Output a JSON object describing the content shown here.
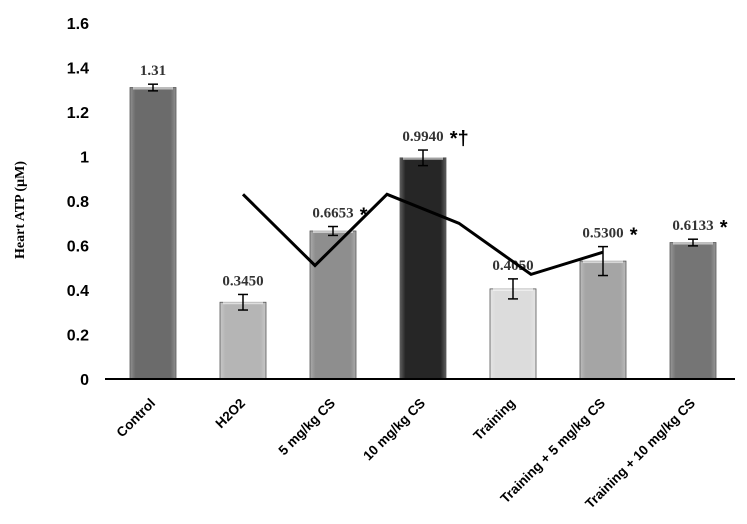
{
  "chart_data": {
    "type": "bar",
    "title": "",
    "xlabel": "",
    "ylabel": "Heart ATP (µM)",
    "ylim": [
      0,
      1.6
    ],
    "yticks": [
      "0",
      "0.2",
      "0.4",
      "0.6",
      "0.8",
      "1",
      "1.2",
      "1.4",
      "1.6"
    ],
    "grid": false,
    "categories": [
      "Control",
      "H2O2",
      "5 mg/kg CS",
      "10 mg/kg CS",
      "Training",
      "Training + 5 mg/kg CS",
      "Training + 10 mg/kg CS"
    ],
    "values": [
      1.31,
      0.345,
      0.6653,
      0.994,
      0.405,
      0.53,
      0.6133
    ],
    "errors": [
      0.015,
      0.035,
      0.02,
      0.035,
      0.045,
      0.065,
      0.015
    ],
    "data_labels": [
      "1.31",
      "0.3450",
      "0.6653",
      "0.9940",
      "0.4050",
      "0.5300",
      "0.6133"
    ],
    "significance": [
      "",
      "",
      "*",
      "*†",
      "",
      "*",
      "*"
    ],
    "bar_colors": [
      "#6b6b6b",
      "#b5b5b5",
      "#8e8e8e",
      "#262626",
      "#dcdcdc",
      "#a5a5a5",
      "#757575"
    ],
    "line": {
      "x_from": 1,
      "x_to": 5,
      "values": [
        0.83,
        0.51,
        0.83,
        0.7,
        0.47,
        0.57
      ],
      "color": "#000000"
    }
  }
}
